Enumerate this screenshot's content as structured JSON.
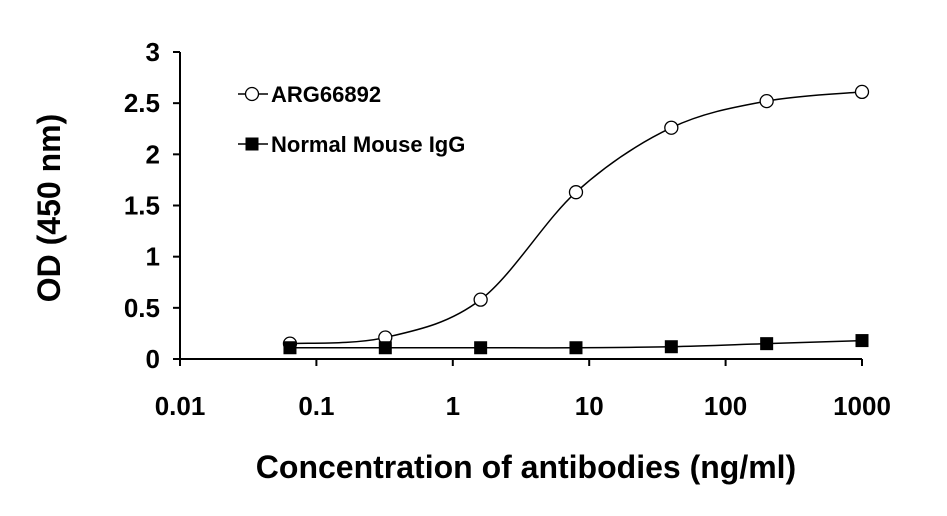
{
  "chart_data": {
    "type": "line",
    "xlabel": "Concentration of antibodies (ng/ml)",
    "ylabel": "OD (450 nm)",
    "x_scale": "log",
    "xlim": [
      0.01,
      1000
    ],
    "ylim": [
      0,
      3
    ],
    "x_ticks": [
      0.01,
      0.1,
      1,
      10,
      100,
      1000
    ],
    "x_tick_labels": [
      "0.01",
      "0.1",
      "1",
      "10",
      "100",
      "1000"
    ],
    "y_ticks": [
      0,
      0.5,
      1,
      1.5,
      2,
      2.5,
      3
    ],
    "y_tick_labels": [
      "0",
      "0.5",
      "1",
      "1.5",
      "2",
      "2.5",
      "3"
    ],
    "grid": false,
    "legend_position": "top-left",
    "series": [
      {
        "name": "ARG66892",
        "marker": "open-circle",
        "color": "#000000",
        "x": [
          0.064,
          0.32,
          1.6,
          8,
          40,
          200,
          1000
        ],
        "y": [
          0.15,
          0.21,
          0.58,
          1.63,
          2.26,
          2.52,
          2.61
        ]
      },
      {
        "name": "Normal Mouse IgG",
        "marker": "filled-square",
        "color": "#000000",
        "x": [
          0.064,
          0.32,
          1.6,
          8,
          40,
          200,
          1000
        ],
        "y": [
          0.11,
          0.11,
          0.11,
          0.11,
          0.12,
          0.15,
          0.18
        ]
      }
    ]
  }
}
